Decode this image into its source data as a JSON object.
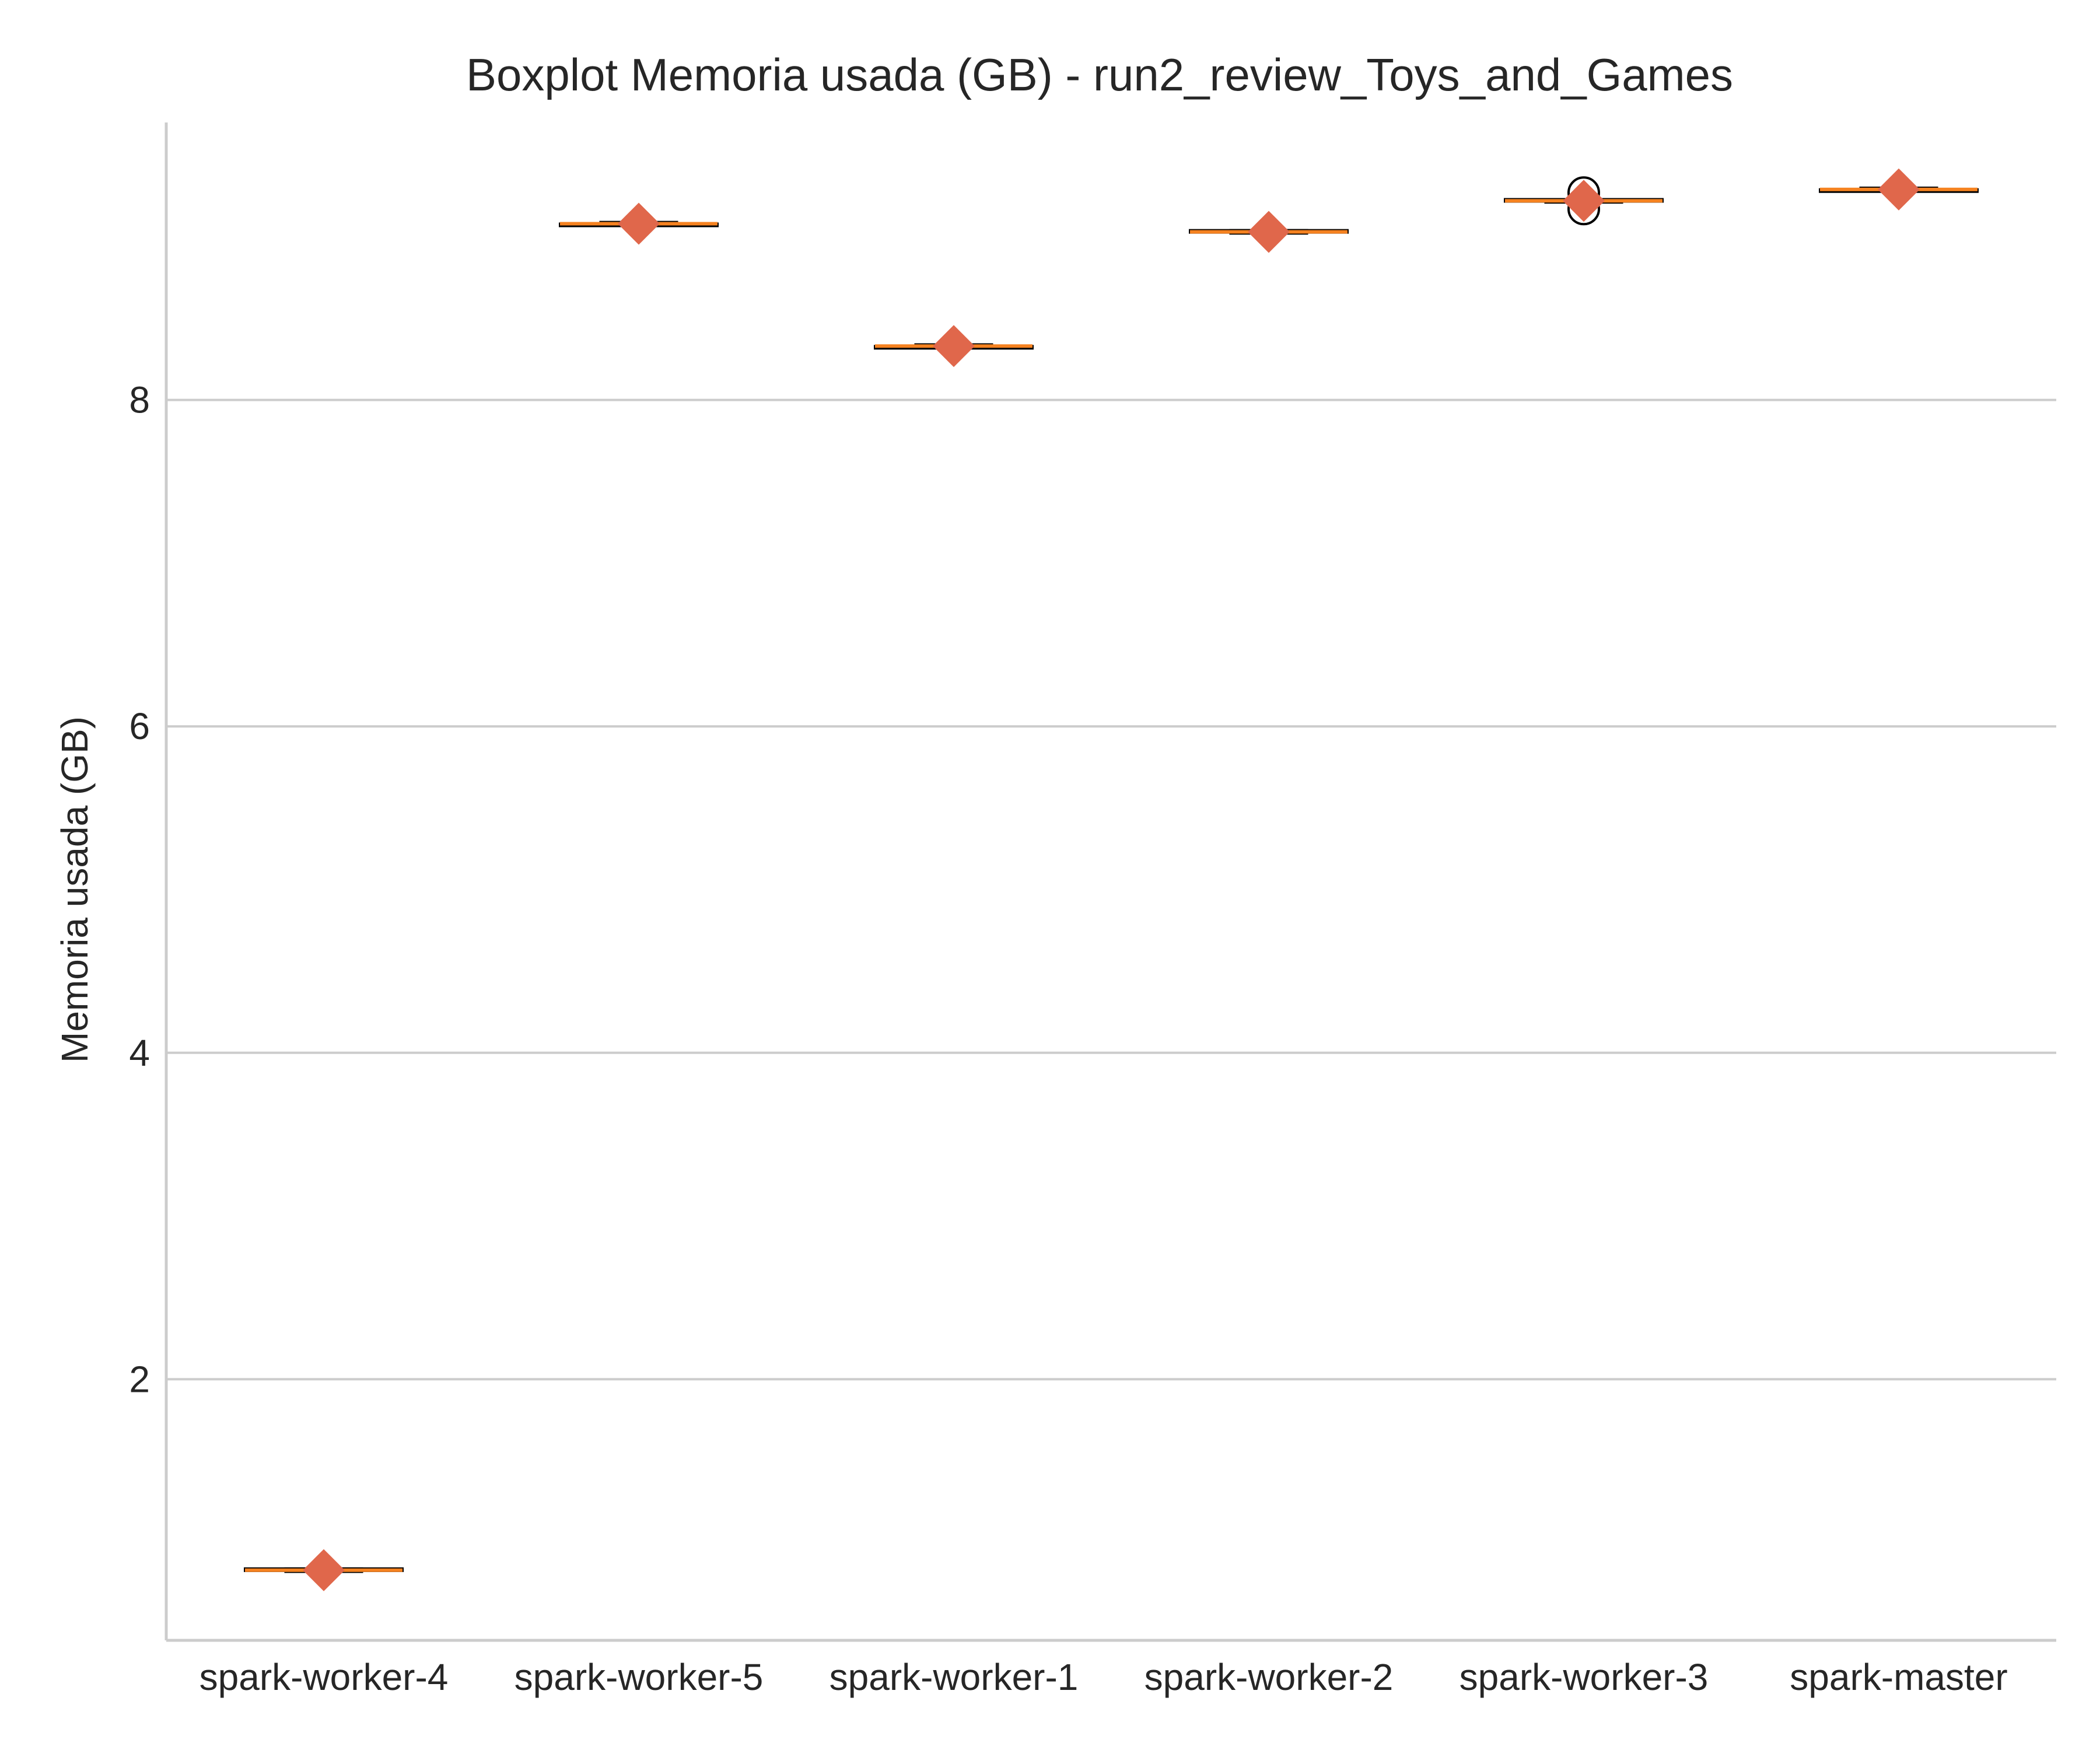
{
  "chart_data": {
    "type": "boxplot",
    "title": "Boxplot Memoria usada (GB) - run2_review_Toys_and_Games",
    "xlabel": "",
    "ylabel": "Memoria usada (GB)",
    "ylim": [
      0.4,
      9.7
    ],
    "yticks": [
      2,
      4,
      6,
      8
    ],
    "grid": "horizontal",
    "categories": [
      "spark-worker-4",
      "spark-worker-5",
      "spark-worker-1",
      "spark-worker-2",
      "spark-worker-3",
      "spark-master"
    ],
    "boxes": [
      {
        "category": "spark-worker-4",
        "min": 0.82,
        "q1": 0.83,
        "median": 0.83,
        "q3": 0.84,
        "max": 0.84,
        "mean": 0.83,
        "outliers": []
      },
      {
        "category": "spark-worker-5",
        "min": 9.07,
        "q1": 9.07,
        "median": 9.08,
        "q3": 9.08,
        "max": 9.09,
        "mean": 9.08,
        "outliers": []
      },
      {
        "category": "spark-worker-1",
        "min": 8.32,
        "q1": 8.32,
        "median": 8.33,
        "q3": 8.33,
        "max": 8.34,
        "mean": 8.33,
        "outliers": []
      },
      {
        "category": "spark-worker-2",
        "min": 9.02,
        "q1": 9.03,
        "median": 9.03,
        "q3": 9.04,
        "max": 9.04,
        "mean": 9.03,
        "outliers": []
      },
      {
        "category": "spark-worker-3",
        "min": 9.21,
        "q1": 9.22,
        "median": 9.22,
        "q3": 9.23,
        "max": 9.23,
        "mean": 9.22,
        "outliers": [
          9.27,
          9.17
        ]
      },
      {
        "category": "spark-master",
        "min": 9.28,
        "q1": 9.28,
        "median": 9.29,
        "q3": 9.29,
        "max": 9.3,
        "mean": 9.29,
        "outliers": []
      }
    ],
    "colors": {
      "median": "#f58220",
      "mean_marker": "#e0674b",
      "box_edge": "#000000",
      "outlier_edge": "#000000",
      "grid": "#cccccc",
      "spine": "#cccccc",
      "text": "#262626"
    }
  }
}
